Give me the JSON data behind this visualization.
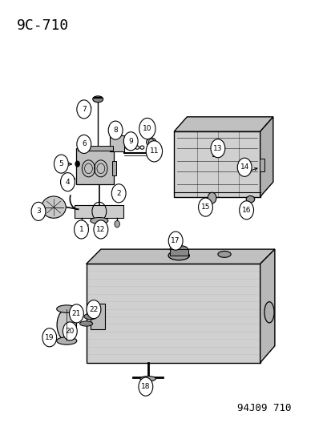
{
  "title": "9C-710",
  "footer": "94J09 710",
  "bg_color": "#ffffff",
  "title_fontsize": 13,
  "footer_fontsize": 9
}
